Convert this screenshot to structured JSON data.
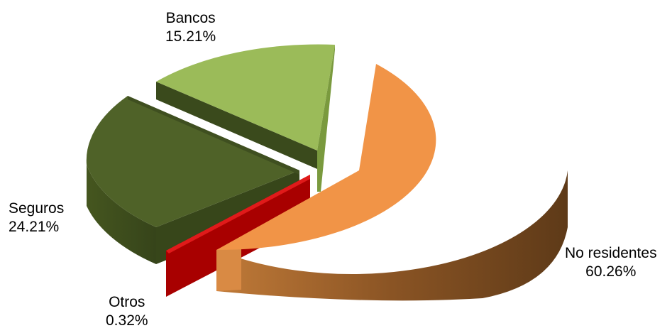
{
  "chart_data": {
    "type": "pie",
    "variant": "3d-exploded",
    "slices": [
      {
        "name": "No residentes",
        "value": 60.26,
        "label": "60.26%",
        "color": "#F19447",
        "side_color": "#7A4A20"
      },
      {
        "name": "Otros",
        "value": 0.32,
        "label": "0.32%",
        "color": "#D01010",
        "side_color": "#A80000"
      },
      {
        "name": "Seguros",
        "value": 24.21,
        "label": "24.21%",
        "color": "#4F6228",
        "side_color": "#3B4A1E"
      },
      {
        "name": "Bancos",
        "value": 15.21,
        "label": "15.21%",
        "color": "#9BBB59",
        "side_color": "#6F8A3C"
      }
    ]
  }
}
